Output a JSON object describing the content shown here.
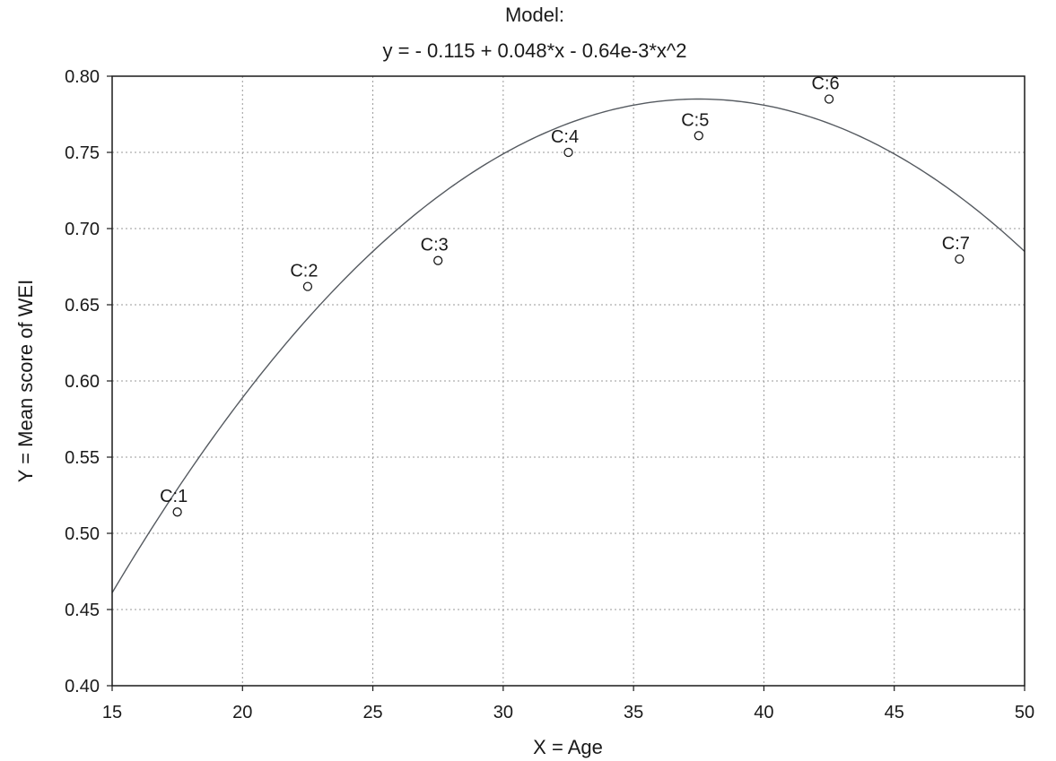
{
  "chart_data": {
    "type": "scatter",
    "title": "Model:",
    "subtitle": "y = - 0.115 + 0.048*x - 0.64e-3*x^2",
    "xlabel": "X = Age",
    "ylabel": "Y = Mean score of WEI",
    "xlim": [
      15,
      50
    ],
    "ylim": [
      0.4,
      0.8
    ],
    "x_ticks": [
      "15",
      "20",
      "25",
      "30",
      "35",
      "40",
      "45",
      "50"
    ],
    "y_ticks": [
      "0.40",
      "0.45",
      "0.50",
      "0.55",
      "0.60",
      "0.65",
      "0.70",
      "0.75",
      "0.80"
    ],
    "grid": true,
    "fit": {
      "intercept": -0.115,
      "b1": 0.048,
      "b2": -0.00064
    },
    "series": [
      {
        "points": [
          {
            "label": "C:1",
            "x": 17.5,
            "y": 0.514
          },
          {
            "label": "C:2",
            "x": 22.5,
            "y": 0.662
          },
          {
            "label": "C:3",
            "x": 27.5,
            "y": 0.679
          },
          {
            "label": "C:4",
            "x": 32.5,
            "y": 0.75
          },
          {
            "label": "C:5",
            "x": 37.5,
            "y": 0.761
          },
          {
            "label": "C:6",
            "x": 42.5,
            "y": 0.785
          },
          {
            "label": "C:7",
            "x": 47.5,
            "y": 0.68
          }
        ]
      }
    ]
  }
}
